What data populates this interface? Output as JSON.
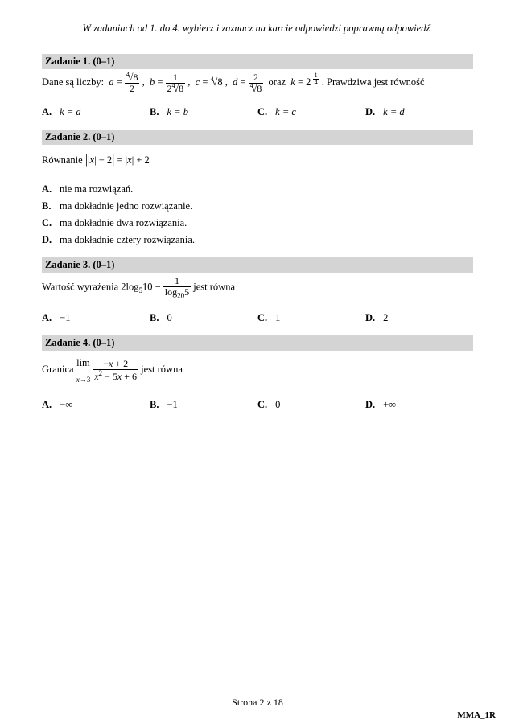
{
  "instruction": "W zadaniach od 1. do 4. wybierz i zaznacz na karcie odpowiedzi poprawną odpowiedź.",
  "tasks": [
    {
      "header": "Zadanie 1. (0–1)",
      "intro": "Dane są liczby:",
      "tail": ". Prawdziwa jest równość",
      "opts": {
        "A": "k = a",
        "B": "k = b",
        "C": "k = c",
        "D": "k = d"
      }
    },
    {
      "header": "Zadanie 2. (0–1)",
      "intro_pre": "Równanie ",
      "opts": {
        "A": "nie ma rozwiązań.",
        "B": "ma dokładnie jedno rozwiązanie.",
        "C": "ma dokładnie dwa rozwiązania.",
        "D": "ma dokładnie cztery rozwiązania."
      }
    },
    {
      "header": "Zadanie 3. (0–1)",
      "intro_pre": "Wartość wyrażenia ",
      "intro_post": " jest równa",
      "opts": {
        "A": "−1",
        "B": "0",
        "C": "1",
        "D": "2"
      }
    },
    {
      "header": "Zadanie 4. (0–1)",
      "intro_pre": "Granica ",
      "intro_post": " jest równa",
      "opts": {
        "A": "−∞",
        "B": "−1",
        "C": "0",
        "D": "+∞"
      }
    }
  ],
  "footer": {
    "page": "Strona 2 z 18",
    "code": "MMA_1R"
  },
  "style": {
    "bg": "#ffffff",
    "text": "#000000",
    "header_bg": "#d4d4d4",
    "font_body": 12.5
  }
}
